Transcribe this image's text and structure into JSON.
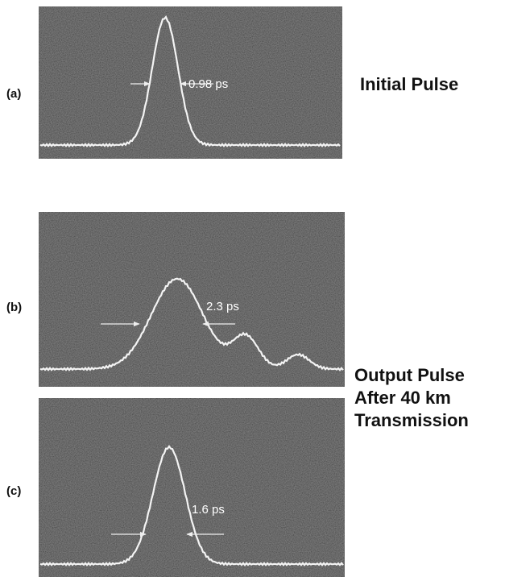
{
  "panels": [
    {
      "label": "(a)",
      "width": "0.98 ps"
    },
    {
      "label": "(b)",
      "width": "2.3 ps"
    },
    {
      "label": "(c)",
      "width": "1.6 ps"
    }
  ],
  "captions": {
    "initial": "Initial Pulse",
    "output": [
      "Output Pulse",
      "After 40 km",
      "Transmission"
    ]
  }
}
